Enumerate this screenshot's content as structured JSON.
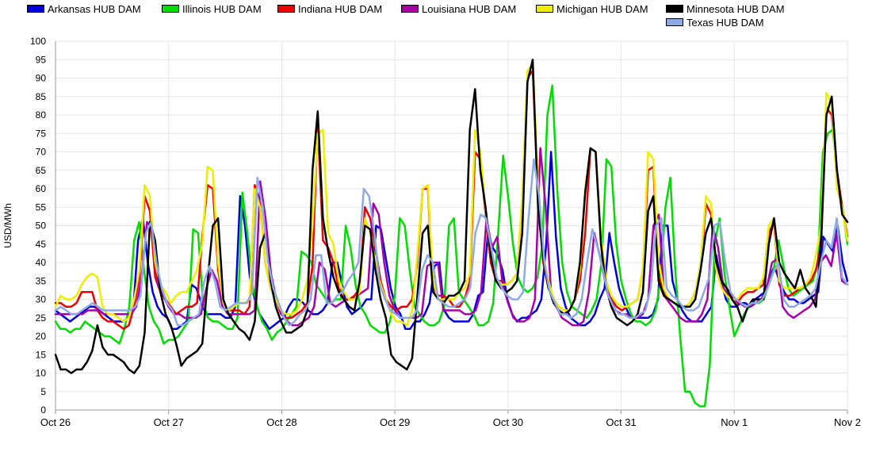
{
  "chart_data": {
    "type": "line",
    "ylabel": "USD/MWh",
    "ylim": [
      0,
      100
    ],
    "yticks": [
      0,
      5,
      10,
      15,
      20,
      25,
      30,
      35,
      40,
      45,
      50,
      55,
      60,
      65,
      70,
      75,
      80,
      85,
      90,
      95,
      100
    ],
    "x_ticks": [
      "Oct 26",
      "Oct 27",
      "Oct 28",
      "Oct 29",
      "Oct 30",
      "Oct 31",
      "Nov 1",
      "Nov 2"
    ],
    "x_unit": "hour",
    "legend_position": "top",
    "grid": true,
    "series": [
      {
        "name": "Arkansas HUB DAM",
        "color": "#0000dd",
        "values": [
          27,
          26,
          25,
          24,
          25,
          26,
          27,
          28,
          28,
          27,
          26,
          25,
          24,
          24,
          24,
          25,
          27,
          46,
          52,
          40,
          32,
          28,
          26,
          25,
          22,
          22,
          23,
          24,
          34,
          33,
          29,
          26,
          26,
          26,
          26,
          25,
          25,
          28,
          58,
          50,
          36,
          30,
          26,
          24,
          22,
          23,
          24,
          25,
          28,
          30,
          30,
          29,
          27,
          26,
          26,
          27,
          29,
          40,
          40,
          34,
          28,
          26,
          27,
          28,
          30,
          30,
          50,
          49,
          41,
          33,
          28,
          26,
          22,
          22,
          24,
          24,
          26,
          29,
          39,
          40,
          27,
          25,
          24,
          24,
          24,
          24,
          26,
          31,
          32,
          48,
          44,
          42,
          38,
          30,
          26,
          24,
          25,
          25,
          26,
          27,
          30,
          45,
          70,
          47,
          33,
          28,
          25,
          24,
          23,
          23,
          24,
          26,
          30,
          33,
          48,
          40,
          33,
          29,
          26,
          25,
          25,
          25,
          25,
          26,
          30,
          50,
          50,
          35,
          30,
          27,
          25,
          24,
          24,
          24,
          26,
          28,
          42,
          35,
          30,
          28,
          28,
          29,
          29,
          28,
          30,
          31,
          32,
          36,
          39,
          35,
          32,
          30,
          30,
          29,
          29,
          30,
          31,
          32,
          47,
          45,
          43,
          50,
          40,
          35
        ]
      },
      {
        "name": "Illinois HUB DAM",
        "color": "#00dd00",
        "values": [
          24,
          22,
          22,
          21,
          22,
          22,
          24,
          23,
          22,
          21,
          20,
          20,
          19,
          18,
          22,
          28,
          46,
          51,
          38,
          28,
          24,
          22,
          18,
          19,
          19,
          20,
          22,
          24,
          49,
          48,
          29,
          25,
          24,
          24,
          23,
          22,
          22,
          25,
          59,
          48,
          34,
          28,
          24,
          22,
          19,
          21,
          22,
          24,
          26,
          28,
          43,
          42,
          40,
          34,
          32,
          30,
          29,
          30,
          30,
          50,
          44,
          34,
          28,
          26,
          23,
          22,
          21,
          21,
          24,
          31,
          52,
          50,
          38,
          28,
          26,
          24,
          23,
          23,
          24,
          28,
          50,
          52,
          32,
          30,
          28,
          26,
          23,
          23,
          24,
          29,
          48,
          69,
          58,
          45,
          36,
          33,
          32,
          33,
          36,
          45,
          80,
          88,
          60,
          40,
          32,
          28,
          27,
          26,
          25,
          27,
          30,
          40,
          68,
          66,
          45,
          35,
          30,
          26,
          24,
          24,
          23,
          24,
          27,
          35,
          55,
          63,
          38,
          20,
          5,
          5,
          2,
          1,
          1,
          12,
          45,
          52,
          37,
          28,
          20,
          23,
          26,
          28,
          29,
          29,
          30,
          34,
          38,
          46,
          39,
          33,
          31,
          32,
          33,
          34,
          35,
          40,
          70,
          75,
          76,
          63,
          55,
          45
        ]
      },
      {
        "name": "Indiana HUB DAM",
        "color": "#ee0000",
        "values": [
          29,
          29,
          28,
          28,
          29,
          32,
          32,
          32,
          27,
          25,
          24,
          24,
          23,
          22,
          23,
          28,
          36,
          58,
          54,
          36,
          32,
          30,
          28,
          26,
          27,
          28,
          28,
          29,
          47,
          61,
          60,
          38,
          29,
          27,
          27,
          27,
          26,
          28,
          61,
          56,
          40,
          33,
          30,
          26,
          25,
          25,
          26,
          27,
          29,
          39,
          78,
          46,
          44,
          40,
          33,
          30,
          30,
          31,
          33,
          55,
          52,
          44,
          35,
          30,
          28,
          27,
          28,
          28,
          30,
          40,
          60,
          60,
          33,
          31,
          31,
          30,
          28,
          28,
          30,
          35,
          70,
          68,
          53,
          40,
          35,
          35,
          34,
          35,
          37,
          57,
          90,
          92,
          58,
          40,
          33,
          30,
          28,
          27,
          27,
          30,
          35,
          48,
          71,
          70,
          46,
          35,
          30,
          28,
          27,
          28,
          29,
          30,
          38,
          65,
          66,
          36,
          32,
          30,
          29,
          28,
          28,
          29,
          32,
          38,
          56,
          53,
          40,
          35,
          33,
          31,
          29,
          31,
          32,
          32,
          33,
          34,
          48,
          51,
          34,
          31,
          31,
          32,
          33,
          34,
          35,
          38,
          45,
          82,
          80,
          65,
          55,
          47
        ]
      },
      {
        "name": "Louisiana HUB DAM",
        "color": "#aa00aa",
        "values": [
          26,
          26,
          26,
          26,
          26,
          26,
          27,
          27,
          27,
          26,
          26,
          26,
          26,
          26,
          26,
          28,
          36,
          51,
          49,
          34,
          31,
          28,
          26,
          26,
          25,
          25,
          25,
          26,
          33,
          38,
          35,
          28,
          26,
          26,
          26,
          26,
          26,
          27,
          62,
          52,
          37,
          30,
          26,
          24,
          23,
          23,
          24,
          25,
          28,
          40,
          38,
          29,
          28,
          29,
          30,
          30,
          31,
          32,
          33,
          56,
          53,
          40,
          31,
          27,
          25,
          25,
          25,
          25,
          26,
          39,
          40,
          40,
          27,
          27,
          27,
          27,
          26,
          26,
          27,
          32,
          52,
          44,
          47,
          34,
          29,
          25,
          24,
          24,
          25,
          30,
          71,
          55,
          32,
          28,
          25,
          24,
          23,
          23,
          24,
          32,
          48,
          42,
          35,
          30,
          27,
          26,
          26,
          25,
          25,
          26,
          30,
          50,
          53,
          31,
          29,
          27,
          25,
          24,
          24,
          24,
          26,
          30,
          50,
          44,
          33,
          31,
          30,
          29,
          28,
          28,
          29,
          30,
          33,
          40,
          41,
          28,
          26,
          25,
          26,
          27,
          28,
          30,
          40,
          42,
          39,
          48,
          35,
          34
        ]
      },
      {
        "name": "Michigan HUB DAM",
        "color": "#eeee00",
        "values": [
          28,
          31,
          30,
          30,
          31,
          34,
          36,
          37,
          36,
          28,
          26,
          26,
          25,
          24,
          25,
          30,
          38,
          61,
          58,
          40,
          34,
          32,
          29,
          31,
          32,
          32,
          35,
          38,
          45,
          66,
          65,
          40,
          29,
          27,
          28,
          29,
          29,
          30,
          60,
          55,
          40,
          33,
          30,
          27,
          26,
          26,
          27,
          30,
          35,
          50,
          75,
          76,
          48,
          45,
          35,
          32,
          30,
          30,
          32,
          52,
          48,
          40,
          34,
          30,
          26,
          24,
          24,
          23,
          27,
          42,
          60,
          61,
          35,
          30,
          30,
          30,
          30,
          32,
          33,
          37,
          76,
          70,
          54,
          42,
          36,
          34,
          34,
          35,
          37,
          58,
          92,
          94,
          62,
          42,
          35,
          30,
          28,
          27,
          27,
          30,
          38,
          60,
          71,
          70,
          47,
          35,
          31,
          29,
          28,
          28,
          29,
          30,
          38,
          70,
          68,
          40,
          33,
          30,
          29,
          28,
          28,
          29,
          32,
          40,
          58,
          56,
          38,
          33,
          31,
          30,
          30,
          32,
          33,
          33,
          33,
          36,
          50,
          52,
          35,
          33,
          33,
          33,
          33,
          34,
          36,
          42,
          50,
          86,
          83,
          60,
          55,
          46
        ]
      },
      {
        "name": "Minnesota HUB DAM",
        "color": "#000000",
        "values": [
          15,
          11,
          11,
          10,
          11,
          11,
          13,
          16,
          23,
          17,
          15,
          15,
          14,
          13,
          11,
          10,
          12,
          21,
          51,
          46,
          32,
          26,
          23,
          18,
          12,
          14,
          15,
          16,
          18,
          35,
          50,
          52,
          30,
          26,
          24,
          22,
          21,
          19,
          24,
          44,
          48,
          35,
          28,
          24,
          21,
          21,
          22,
          23,
          27,
          65,
          81,
          52,
          43,
          36,
          32,
          30,
          28,
          27,
          35,
          50,
          49,
          38,
          30,
          25,
          15,
          13,
          12,
          11,
          14,
          31,
          48,
          50,
          32,
          30,
          29,
          31,
          31,
          32,
          35,
          76,
          87,
          65,
          55,
          42,
          35,
          33,
          32,
          33,
          35,
          48,
          89,
          95,
          55,
          41,
          33,
          29,
          27,
          26,
          27,
          30,
          40,
          59,
          71,
          70,
          45,
          33,
          28,
          25,
          24,
          23,
          24,
          26,
          32,
          54,
          58,
          35,
          31,
          30,
          29,
          28,
          28,
          28,
          30,
          38,
          48,
          52,
          40,
          35,
          33,
          30,
          28,
          24,
          28,
          30,
          30,
          30,
          45,
          52,
          40,
          37,
          35,
          33,
          38,
          33,
          31,
          28,
          47,
          80,
          85,
          65,
          53,
          51
        ]
      },
      {
        "name": "Texas HUB DAM",
        "color": "#8eaae6",
        "values": [
          27,
          28,
          27,
          26,
          26,
          27,
          28,
          29,
          28,
          27,
          27,
          27,
          27,
          27,
          27,
          28,
          31,
          48,
          51,
          40,
          33,
          29,
          27,
          23,
          23,
          24,
          25,
          26,
          35,
          39,
          35,
          28,
          27,
          28,
          29,
          29,
          29,
          32,
          63,
          55,
          40,
          33,
          29,
          25,
          23,
          24,
          26,
          27,
          30,
          42,
          42,
          29,
          29,
          31,
          32,
          35,
          37,
          40,
          60,
          58,
          48,
          34,
          30,
          27,
          26,
          25,
          25,
          25,
          27,
          38,
          42,
          40,
          30,
          29,
          28,
          28,
          29,
          30,
          33,
          48,
          53,
          52,
          44,
          36,
          33,
          31,
          30,
          30,
          32,
          52,
          68,
          58,
          40,
          32,
          29,
          26,
          26,
          25,
          26,
          30,
          40,
          49,
          44,
          38,
          31,
          28,
          26,
          26,
          25,
          25,
          26,
          27,
          33,
          50,
          52,
          33,
          31,
          30,
          28,
          27,
          27,
          28,
          32,
          36,
          50,
          51,
          40,
          32,
          30,
          29,
          28,
          29,
          29,
          30,
          33,
          37,
          40,
          30,
          28,
          28,
          29,
          30,
          31,
          33,
          40,
          46,
          44,
          52,
          36,
          34
        ]
      }
    ]
  }
}
